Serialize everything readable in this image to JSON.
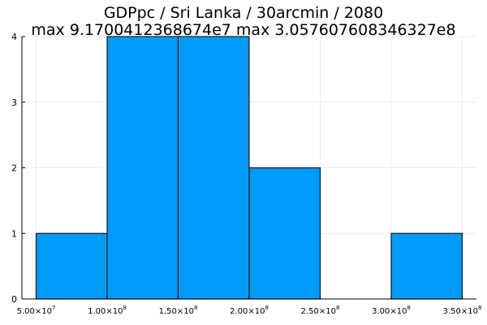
{
  "chart_data": {
    "type": "bar",
    "title_lines": [
      "GDPpc / Sri Lanka / 30arcmin / 2080",
      "max 9.1700412368674e7  max 3.057607608346327e8"
    ],
    "xlabel": "",
    "ylabel": "",
    "bin_edges": [
      50000000,
      100000000,
      150000000,
      200000000,
      250000000,
      300000000,
      350000000
    ],
    "values": [
      1,
      4,
      4,
      2,
      0,
      1
    ],
    "xlim": [
      40000000,
      360000000
    ],
    "ylim": [
      0,
      4
    ],
    "x_ticks": [
      {
        "value": 50000000,
        "mantissa": "5.00",
        "exp": "7"
      },
      {
        "value": 100000000,
        "mantissa": "1.00",
        "exp": "8"
      },
      {
        "value": 150000000,
        "mantissa": "1.50",
        "exp": "8"
      },
      {
        "value": 200000000,
        "mantissa": "2.00",
        "exp": "8"
      },
      {
        "value": 250000000,
        "mantissa": "2.50",
        "exp": "8"
      },
      {
        "value": 300000000,
        "mantissa": "3.00",
        "exp": "8"
      },
      {
        "value": 350000000,
        "mantissa": "3.50",
        "exp": "8"
      }
    ],
    "y_ticks": [
      0,
      1,
      2,
      3,
      4
    ],
    "grid": true,
    "legend": "none",
    "colors": {
      "bar_fill": "#009af9",
      "bar_stroke": "#1a1a1a",
      "grid": "#ececec",
      "axis": "#000000"
    }
  }
}
